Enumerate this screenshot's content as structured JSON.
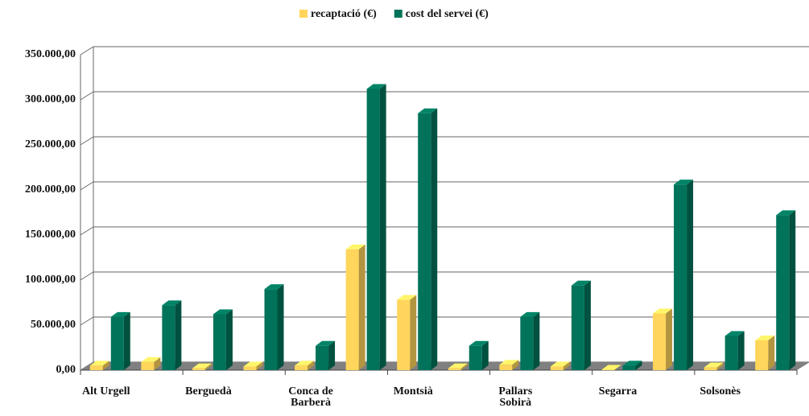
{
  "chart_data": {
    "type": "bar3d",
    "categories": [
      "Alt Urgell",
      null,
      "Berguedà",
      null,
      "Conca de Barberà",
      null,
      "Montsià",
      null,
      "Pallars Sobirà",
      null,
      "Segarra",
      null,
      "Solsonès",
      null
    ],
    "series": [
      {
        "name": "recaptació (€)",
        "color": "#ffd55c",
        "values": [
          5000,
          9000,
          2000,
          4000,
          5000,
          134000,
          78000,
          2000,
          6000,
          4000,
          500,
          63000,
          3000,
          33000
        ]
      },
      {
        "name": "cost del servei (€)",
        "color": "#00735a",
        "values": [
          59000,
          72000,
          62000,
          90000,
          27000,
          312000,
          285000,
          27000,
          59000,
          94000,
          5000,
          206000,
          38000,
          172000
        ]
      }
    ],
    "ylim": [
      0,
      350000
    ],
    "yticks": [
      {
        "value": 0,
        "label": "0,00"
      },
      {
        "value": 50000,
        "label": "50.000,00"
      },
      {
        "value": 100000,
        "label": "100.000,00"
      },
      {
        "value": 150000,
        "label": "150.000,00"
      },
      {
        "value": 200000,
        "label": "200.000,00"
      },
      {
        "value": 250000,
        "label": "250.000,00"
      },
      {
        "value": 300000,
        "label": "300.000,00"
      },
      {
        "value": 350000,
        "label": "350.000,00"
      }
    ],
    "grid": true,
    "legend": "top"
  }
}
